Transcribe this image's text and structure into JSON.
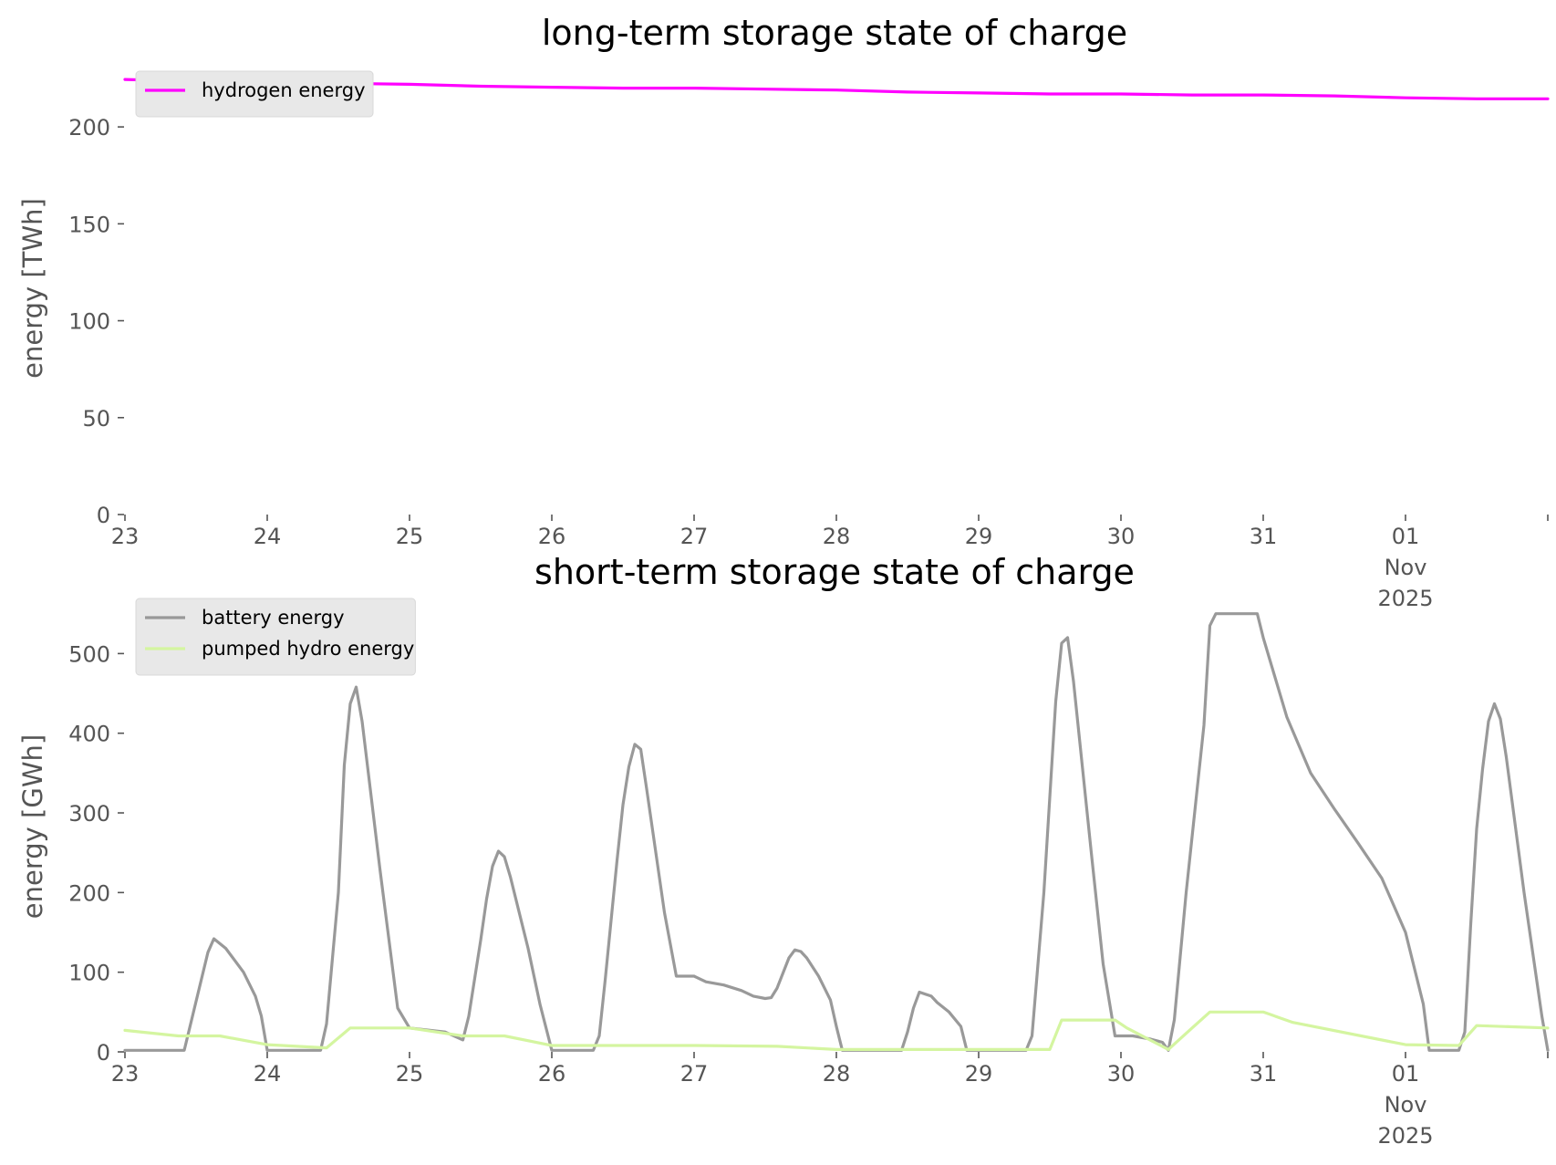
{
  "chart_data": [
    {
      "type": "line",
      "title": "long-term storage state of charge",
      "xlabel": "",
      "ylabel": "energy [TWh]",
      "ylim": [
        0,
        225
      ],
      "yticks": [
        0,
        50,
        100,
        150,
        200
      ],
      "xlim": [
        "2025-10-23",
        "2025-11-02"
      ],
      "xticks": [
        {
          "date": "2025-10-23",
          "label": "23"
        },
        {
          "date": "2025-10-24",
          "label": "24"
        },
        {
          "date": "2025-10-25",
          "label": "25"
        },
        {
          "date": "2025-10-26",
          "label": "26"
        },
        {
          "date": "2025-10-27",
          "label": "27"
        },
        {
          "date": "2025-10-28",
          "label": "28"
        },
        {
          "date": "2025-10-29",
          "label": "29"
        },
        {
          "date": "2025-10-30",
          "label": "30"
        },
        {
          "date": "2025-10-31",
          "label": "31"
        },
        {
          "date": "2025-11-01",
          "label": "01\nNov\n2025"
        }
      ],
      "grid": false,
      "legend_position": "top-left",
      "series": [
        {
          "name": "hydrogen energy",
          "color": "#ff00ff",
          "points": [
            [
              "2025-10-23 00:00",
              224.5
            ],
            [
              "2025-10-23 12:00",
              223.5
            ],
            [
              "2025-10-24 00:00",
              223.0
            ],
            [
              "2025-10-24 12:00",
              222.5
            ],
            [
              "2025-10-25 00:00",
              222.0
            ],
            [
              "2025-10-25 12:00",
              221.0
            ],
            [
              "2025-10-26 00:00",
              220.5
            ],
            [
              "2025-10-26 12:00",
              220.0
            ],
            [
              "2025-10-27 00:00",
              220.0
            ],
            [
              "2025-10-27 12:00",
              219.5
            ],
            [
              "2025-10-28 00:00",
              219.0
            ],
            [
              "2025-10-28 12:00",
              218.0
            ],
            [
              "2025-10-29 00:00",
              217.5
            ],
            [
              "2025-10-29 12:00",
              217.0
            ],
            [
              "2025-10-30 00:00",
              217.0
            ],
            [
              "2025-10-30 12:00",
              216.5
            ],
            [
              "2025-10-31 00:00",
              216.5
            ],
            [
              "2025-10-31 12:00",
              216.0
            ],
            [
              "2025-11-01 00:00",
              215.0
            ],
            [
              "2025-11-01 12:00",
              214.5
            ],
            [
              "2025-11-02 00:00",
              214.5
            ]
          ]
        }
      ]
    },
    {
      "type": "line",
      "title": "short-term storage state of charge",
      "xlabel": "",
      "ylabel": "energy [GWh]",
      "ylim": [
        0,
        560
      ],
      "yticks": [
        0,
        100,
        200,
        300,
        400,
        500
      ],
      "xlim": [
        "2025-10-23",
        "2025-11-02"
      ],
      "xticks": [
        {
          "date": "2025-10-23",
          "label": "23"
        },
        {
          "date": "2025-10-24",
          "label": "24"
        },
        {
          "date": "2025-10-25",
          "label": "25"
        },
        {
          "date": "2025-10-26",
          "label": "26"
        },
        {
          "date": "2025-10-27",
          "label": "27"
        },
        {
          "date": "2025-10-28",
          "label": "28"
        },
        {
          "date": "2025-10-29",
          "label": "29"
        },
        {
          "date": "2025-10-30",
          "label": "30"
        },
        {
          "date": "2025-10-31",
          "label": "31"
        },
        {
          "date": "2025-11-01",
          "label": "01\nNov\n2025"
        }
      ],
      "grid": false,
      "legend_position": "top-left",
      "series": [
        {
          "name": "battery energy",
          "color": "#999999",
          "points": [
            [
              "2025-10-23 00:00",
              2
            ],
            [
              "2025-10-23 10:00",
              2
            ],
            [
              "2025-10-23 14:00",
              125
            ],
            [
              "2025-10-23 15:00",
              142
            ],
            [
              "2025-10-23 17:00",
              130
            ],
            [
              "2025-10-23 20:00",
              100
            ],
            [
              "2025-10-23 22:00",
              70
            ],
            [
              "2025-10-23 23:00",
              45
            ],
            [
              "2025-10-24 00:00",
              2
            ],
            [
              "2025-10-24 09:00",
              2
            ],
            [
              "2025-10-24 10:00",
              35
            ],
            [
              "2025-10-24 12:00",
              200
            ],
            [
              "2025-10-24 13:00",
              360
            ],
            [
              "2025-10-24 14:00",
              437
            ],
            [
              "2025-10-24 15:00",
              458
            ],
            [
              "2025-10-24 16:00",
              415
            ],
            [
              "2025-10-24 19:00",
              230
            ],
            [
              "2025-10-24 22:00",
              55
            ],
            [
              "2025-10-25 00:00",
              30
            ],
            [
              "2025-10-25 06:00",
              25
            ],
            [
              "2025-10-25 09:00",
              15
            ],
            [
              "2025-10-25 10:00",
              45
            ],
            [
              "2025-10-25 12:00",
              140
            ],
            [
              "2025-10-25 13:00",
              192
            ],
            [
              "2025-10-25 14:00",
              233
            ],
            [
              "2025-10-25 15:00",
              252
            ],
            [
              "2025-10-25 16:00",
              245
            ],
            [
              "2025-10-25 17:00",
              220
            ],
            [
              "2025-10-25 20:00",
              130
            ],
            [
              "2025-10-25 22:00",
              60
            ],
            [
              "2025-10-26 00:00",
              2
            ],
            [
              "2025-10-26 07:00",
              2
            ],
            [
              "2025-10-26 08:00",
              20
            ],
            [
              "2025-10-26 09:00",
              90
            ],
            [
              "2025-10-26 11:00",
              240
            ],
            [
              "2025-10-26 12:00",
              310
            ],
            [
              "2025-10-26 13:00",
              358
            ],
            [
              "2025-10-26 14:00",
              386
            ],
            [
              "2025-10-26 15:00",
              380
            ],
            [
              "2025-10-26 16:00",
              330
            ],
            [
              "2025-10-26 19:00",
              175
            ],
            [
              "2025-10-26 21:00",
              95
            ],
            [
              "2025-10-27 00:00",
              95
            ],
            [
              "2025-10-27 02:00",
              88
            ],
            [
              "2025-10-27 05:00",
              84
            ],
            [
              "2025-10-27 08:00",
              77
            ],
            [
              "2025-10-27 10:00",
              70
            ],
            [
              "2025-10-27 12:00",
              67
            ],
            [
              "2025-10-27 13:00",
              68
            ],
            [
              "2025-10-27 14:00",
              80
            ],
            [
              "2025-10-27 16:00",
              118
            ],
            [
              "2025-10-27 17:00",
              128
            ],
            [
              "2025-10-27 18:00",
              126
            ],
            [
              "2025-10-27 19:00",
              118
            ],
            [
              "2025-10-27 21:00",
              95
            ],
            [
              "2025-10-27 23:00",
              65
            ],
            [
              "2025-10-28 00:00",
              32
            ],
            [
              "2025-10-28 01:00",
              2
            ],
            [
              "2025-10-28 11:00",
              2
            ],
            [
              "2025-10-28 12:00",
              25
            ],
            [
              "2025-10-28 13:00",
              55
            ],
            [
              "2025-10-28 14:00",
              75
            ],
            [
              "2025-10-28 16:00",
              70
            ],
            [
              "2025-10-28 17:00",
              62
            ],
            [
              "2025-10-28 19:00",
              50
            ],
            [
              "2025-10-28 21:00",
              32
            ],
            [
              "2025-10-28 22:00",
              2
            ],
            [
              "2025-10-29 08:00",
              2
            ],
            [
              "2025-10-29 09:00",
              20
            ],
            [
              "2025-10-29 11:00",
              200
            ],
            [
              "2025-10-29 13:00",
              440
            ],
            [
              "2025-10-29 14:00",
              513
            ],
            [
              "2025-10-29 15:00",
              520
            ],
            [
              "2025-10-29 16:00",
              465
            ],
            [
              "2025-10-29 19:00",
              250
            ],
            [
              "2025-10-29 21:00",
              110
            ],
            [
              "2025-10-29 23:00",
              20
            ],
            [
              "2025-10-30 02:00",
              20
            ],
            [
              "2025-10-30 05:00",
              16
            ],
            [
              "2025-10-30 07:00",
              12
            ],
            [
              "2025-10-30 08:00",
              2
            ],
            [
              "2025-10-30 09:00",
              40
            ],
            [
              "2025-10-30 11:00",
              200
            ],
            [
              "2025-10-30 14:00",
              410
            ],
            [
              "2025-10-30 15:00",
              535
            ],
            [
              "2025-10-30 16:00",
              550
            ],
            [
              "2025-10-30 23:00",
              550
            ],
            [
              "2025-10-31 00:00",
              520
            ],
            [
              "2025-10-31 04:00",
              420
            ],
            [
              "2025-10-31 08:00",
              350
            ],
            [
              "2025-10-31 12:00",
              305
            ],
            [
              "2025-10-31 16:00",
              262
            ],
            [
              "2025-10-31 20:00",
              218
            ],
            [
              "2025-11-01 00:00",
              150
            ],
            [
              "2025-11-01 03:00",
              60
            ],
            [
              "2025-11-01 04:00",
              2
            ],
            [
              "2025-11-01 06:00",
              2
            ],
            [
              "2025-11-01 09:00",
              2
            ],
            [
              "2025-11-01 10:00",
              25
            ],
            [
              "2025-11-01 11:00",
              160
            ],
            [
              "2025-11-01 12:00",
              280
            ],
            [
              "2025-11-01 13:00",
              355
            ],
            [
              "2025-11-01 14:00",
              415
            ],
            [
              "2025-11-01 15:00",
              437
            ],
            [
              "2025-11-01 16:00",
              418
            ],
            [
              "2025-11-01 17:00",
              370
            ],
            [
              "2025-11-01 20:00",
              200
            ],
            [
              "2025-11-01 23:00",
              45
            ],
            [
              "2025-11-02 00:00",
              2
            ]
          ]
        },
        {
          "name": "pumped hydro energy",
          "color": "#d4f5a0",
          "points": [
            [
              "2025-10-23 00:00",
              27
            ],
            [
              "2025-10-23 09:00",
              20
            ],
            [
              "2025-10-23 16:00",
              20
            ],
            [
              "2025-10-24 00:00",
              9
            ],
            [
              "2025-10-24 10:00",
              5
            ],
            [
              "2025-10-24 14:00",
              30
            ],
            [
              "2025-10-25 00:00",
              30
            ],
            [
              "2025-10-25 09:00",
              20
            ],
            [
              "2025-10-25 16:00",
              20
            ],
            [
              "2025-10-26 00:00",
              8
            ],
            [
              "2025-10-27 00:00",
              8
            ],
            [
              "2025-10-27 14:00",
              7
            ],
            [
              "2025-10-28 00:00",
              3
            ],
            [
              "2025-10-29 12:00",
              3
            ],
            [
              "2025-10-29 14:00",
              40
            ],
            [
              "2025-10-29 23:00",
              40
            ],
            [
              "2025-10-30 01:00",
              30
            ],
            [
              "2025-10-30 08:00",
              3
            ],
            [
              "2025-10-30 12:00",
              30
            ],
            [
              "2025-10-30 15:00",
              50
            ],
            [
              "2025-10-31 00:00",
              50
            ],
            [
              "2025-10-31 05:00",
              37
            ],
            [
              "2025-11-01 00:00",
              9
            ],
            [
              "2025-11-01 09:00",
              8
            ],
            [
              "2025-11-01 12:00",
              33
            ],
            [
              "2025-11-02 00:00",
              30
            ]
          ]
        }
      ]
    }
  ]
}
